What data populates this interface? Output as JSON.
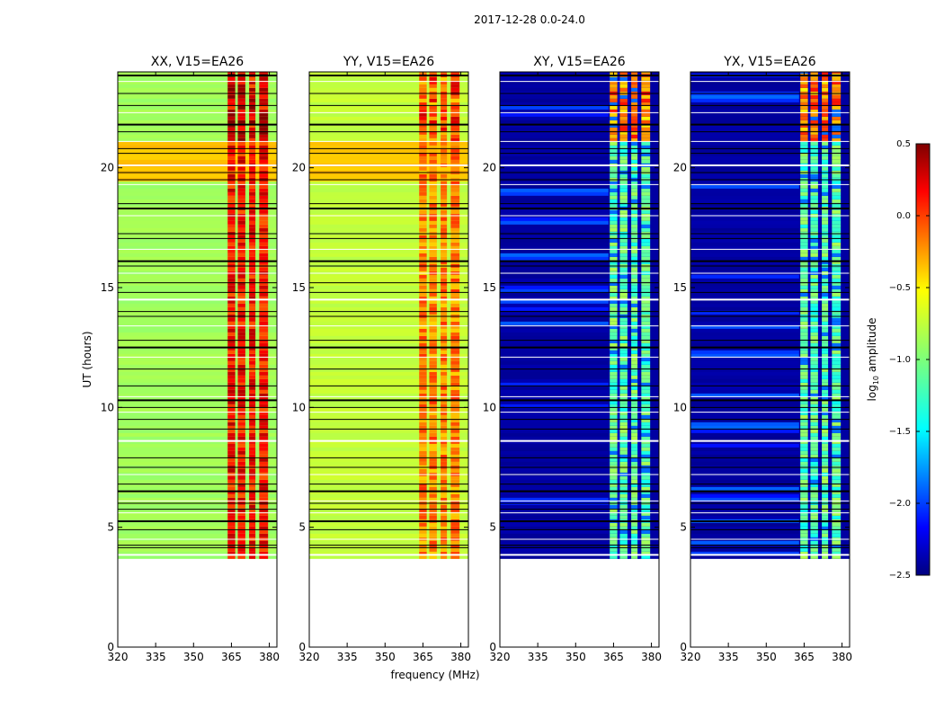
{
  "title": "2017-12-28 0.0-24.0",
  "chart_data": {
    "type": "heatmap",
    "suptitle": "2017-12-28 0.0-24.0",
    "xlabel": "frequency (MHz)",
    "ylabel": "UT (hours)",
    "xlim": [
      320,
      383
    ],
    "ylim": [
      0,
      24
    ],
    "data_time_range": [
      3.7,
      24.0
    ],
    "xticks": [
      320,
      335,
      350,
      365,
      380
    ],
    "yticks": [
      0,
      5,
      10,
      15,
      20
    ],
    "panels": [
      {
        "title": "XX, V15=EA26",
        "pol": "XX"
      },
      {
        "title": "YY, V15=EA26",
        "pol": "YY"
      },
      {
        "title": "XY, V15=EA26",
        "pol": "XY"
      },
      {
        "title": "YX, V15=EA26",
        "pol": "YX"
      }
    ],
    "colorbar": {
      "label": "log10 amplitude",
      "label_main": "log",
      "label_sub": "10",
      "label_rest": " amplitude",
      "range": [
        -2.5,
        0.5
      ],
      "ticks": [
        0.5,
        0.0,
        -0.5,
        -1.0,
        -1.5,
        -2.0,
        -2.5
      ],
      "tick_labels": [
        "0.5",
        "0.0",
        "−0.5",
        "−1.0",
        "−1.5",
        "−2.0",
        "−2.5"
      ],
      "colormap": "jet"
    },
    "band_structure": {
      "strong_band_MHz": [
        363,
        380
      ],
      "strong_band_columns_MHz": [
        [
          363.5,
          366.5
        ],
        [
          367.5,
          370.5
        ],
        [
          372,
          374.5
        ],
        [
          376,
          379.5
        ]
      ],
      "dark_divider_MHz": [
        367,
        371,
        375
      ]
    },
    "typical_levels": {
      "XX": {
        "background": -0.9,
        "band": 0.1,
        "evening_enhanced_rows": [
          19.3,
          21.0
        ]
      },
      "YY": {
        "background": -0.8,
        "band": -0.1,
        "evening_enhanced_rows": [
          19.3,
          21.0
        ]
      },
      "XY": {
        "background": -2.4,
        "band": -1.0,
        "peak_hours": [
          21.0,
          24.0
        ]
      },
      "YX": {
        "background": -2.4,
        "band": -1.0,
        "peak_hours": [
          21.0,
          24.0
        ]
      }
    },
    "flagged_gaps_hours": [
      3.85,
      4.15,
      4.25,
      4.5,
      4.9,
      5.25,
      5.6,
      5.75,
      6.0,
      6.1,
      6.5,
      6.8,
      7.2,
      7.5,
      7.9,
      8.6,
      9.1,
      9.5,
      9.8,
      10.0,
      10.3,
      10.45,
      10.9,
      11.6,
      12.1,
      12.5,
      12.8,
      13.4,
      13.8,
      14.0,
      14.5,
      14.8,
      15.2,
      15.6,
      15.9,
      16.1,
      16.6,
      17.05,
      17.25,
      18.0,
      18.3,
      18.5,
      19.3,
      19.5,
      19.8,
      20.1,
      20.6,
      20.8,
      21.1,
      21.5,
      21.8,
      22.3,
      22.6,
      23.1,
      23.6,
      23.85
    ]
  }
}
